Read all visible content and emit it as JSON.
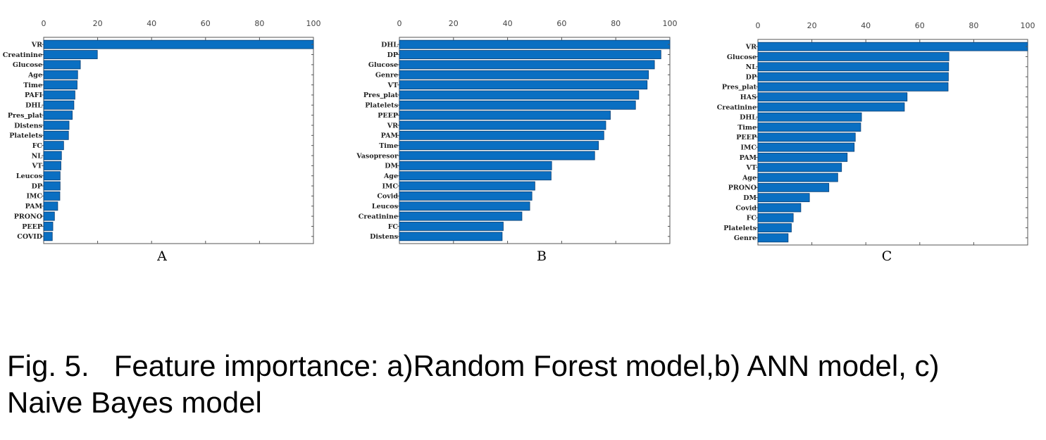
{
  "caption": "Fig. 5.   Feature importance: a)Random Forest model,b) ANN model, c)\nNaive Bayes model",
  "colors": {
    "bar": "#0A6FC2",
    "bar_edge": "#0B3F73",
    "axis": "#555555"
  },
  "chart_data": [
    {
      "type": "bar",
      "orientation": "horizontal",
      "panel_label": "A",
      "xlim": [
        0,
        100
      ],
      "xticks": [
        0,
        20,
        40,
        60,
        80,
        100
      ],
      "grid": false,
      "categories": [
        "VR",
        "Creatinine",
        "Glucose",
        "Age",
        "Time",
        "PAFI",
        "DHL",
        "Pres_plat",
        "Distens",
        "Platelets",
        "FC",
        "NL",
        "VT",
        "Leucos",
        "DP",
        "IMC",
        "PAM",
        "PRONO",
        "PEEP",
        "COVID"
      ],
      "values": [
        100,
        19.9,
        13.6,
        12.6,
        12.4,
        11.6,
        11.2,
        10.6,
        9.4,
        9.2,
        7.4,
        6.6,
        6.4,
        6.1,
        6.1,
        6.0,
        5.2,
        4.0,
        3.4,
        3.2
      ]
    },
    {
      "type": "bar",
      "orientation": "horizontal",
      "panel_label": "B",
      "xlim": [
        0,
        100
      ],
      "xticks": [
        0,
        20,
        40,
        60,
        80,
        100
      ],
      "grid": false,
      "categories": [
        "DHL",
        "DP",
        "Glucose",
        "Genre",
        "VT",
        "Pres_plat",
        "Platelets",
        "PEEP",
        "VR",
        "PAM",
        "Time",
        "Vasopresor",
        "DM",
        "Age",
        "IMC",
        "Covid",
        "Leucos",
        "Creatinine",
        "FC",
        "Distens"
      ],
      "values": [
        100,
        96.7,
        94.3,
        92.1,
        91.6,
        88.5,
        87.3,
        78.0,
        76.3,
        75.6,
        73.6,
        72.2,
        56.3,
        56.1,
        50.1,
        49.0,
        48.2,
        45.3,
        38.4,
        38.0
      ]
    },
    {
      "type": "bar",
      "orientation": "horizontal",
      "panel_label": "C",
      "xlim": [
        0,
        100
      ],
      "xticks": [
        0,
        20,
        40,
        60,
        80,
        100
      ],
      "grid": false,
      "categories": [
        "VR",
        "Glucose",
        "NL",
        "DP",
        "Pres_plat",
        "HAS",
        "Creatinine",
        "DHL",
        "Time",
        "PEEP",
        "IMC",
        "PAM",
        "VT",
        "Age",
        "PRONO",
        "DM",
        "Covid",
        "FC",
        "Platelets",
        "Genre"
      ],
      "values": [
        100,
        70.8,
        70.7,
        70.6,
        70.5,
        55.3,
        54.3,
        38.4,
        38.1,
        36.1,
        35.7,
        33.1,
        31.0,
        29.6,
        26.3,
        19.1,
        15.9,
        13.1,
        12.4,
        11.2
      ]
    }
  ]
}
